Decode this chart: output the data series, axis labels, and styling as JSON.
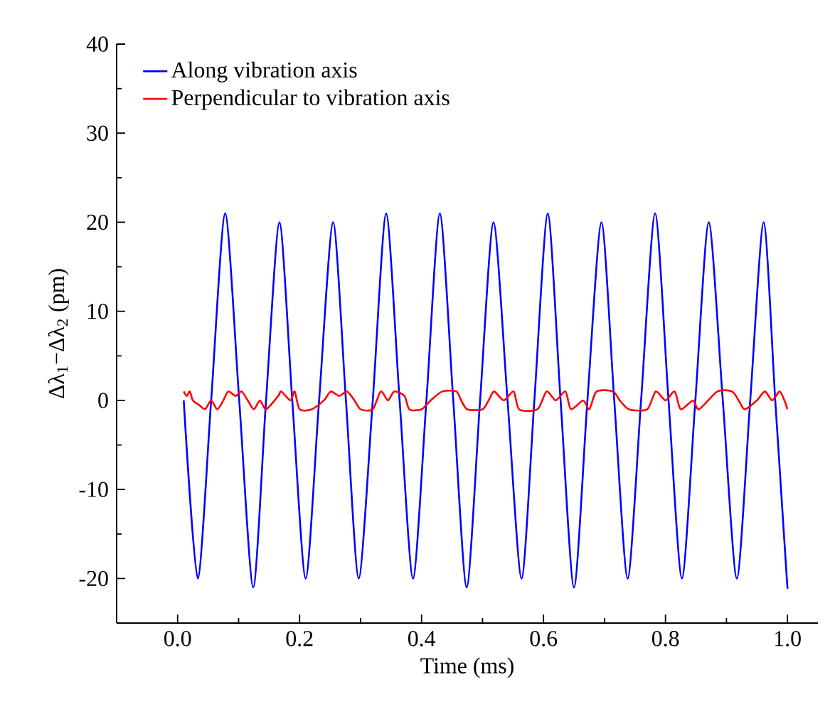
{
  "chart_data": {
    "type": "line",
    "xlabel": "Time (ms)",
    "ylabel": "Δλ$_{1}$−Δλ$_{2}$ (pm)",
    "xlim": [
      -0.1,
      1.05
    ],
    "ylim": [
      -25,
      40
    ],
    "xticks": [
      {
        "value": 0,
        "label": "0.0"
      },
      {
        "value": 0.2,
        "label": "0.2"
      },
      {
        "value": 0.4,
        "label": "0.4"
      },
      {
        "value": 0.6,
        "label": "0.6"
      },
      {
        "value": 0.8,
        "label": "0.8"
      },
      {
        "value": 1,
        "label": "1.0"
      }
    ],
    "yticks": [
      -20,
      -10,
      0,
      10,
      20,
      30,
      40
    ],
    "legend": "top left",
    "marker": "none",
    "line_style": "solid",
    "grid": false,
    "series": [
      {
        "name": "Along vibration axis",
        "color": "#0000ff",
        "x": [
          0.01,
          0.033,
          0.055,
          0.078,
          0.101,
          0.124,
          0.145,
          0.167,
          0.188,
          0.21,
          0.232,
          0.255,
          0.276,
          0.297,
          0.32,
          0.342,
          0.364,
          0.386,
          0.408,
          0.43,
          0.452,
          0.474,
          0.496,
          0.518,
          0.541,
          0.564,
          0.585,
          0.607,
          0.628,
          0.65,
          0.672,
          0.695,
          0.716,
          0.738,
          0.76,
          0.783,
          0.805,
          0.827,
          0.849,
          0.871,
          0.894,
          0.917,
          0.939,
          0.961,
          0.98,
          0.998,
          1.0
        ],
        "values": [
          0,
          -20,
          0,
          21,
          0,
          -21,
          0,
          20,
          0,
          -20,
          0,
          20,
          0,
          -20,
          0,
          21,
          0,
          -20,
          0,
          21,
          0,
          -21,
          0,
          20,
          0,
          -20,
          0,
          21,
          0,
          -21,
          0,
          20,
          0,
          -20,
          0,
          21,
          0,
          -20,
          0,
          20,
          0,
          -20,
          0,
          20,
          0,
          -19,
          -21
        ]
      },
      {
        "name": "Perpendicular to vibration axis",
        "color": "#ff0000",
        "x": [
          0.01,
          0.015,
          0.02,
          0.025,
          0.035,
          0.045,
          0.055,
          0.065,
          0.075,
          0.083,
          0.095,
          0.105,
          0.115,
          0.125,
          0.135,
          0.145,
          0.165,
          0.17,
          0.185,
          0.192,
          0.2,
          0.22,
          0.24,
          0.251,
          0.265,
          0.278,
          0.29,
          0.3,
          0.32,
          0.333,
          0.345,
          0.355,
          0.372,
          0.38,
          0.4,
          0.415,
          0.434,
          0.457,
          0.465,
          0.475,
          0.5,
          0.51,
          0.519,
          0.535,
          0.551,
          0.56,
          0.59,
          0.605,
          0.62,
          0.636,
          0.645,
          0.665,
          0.675,
          0.687,
          0.714,
          0.725,
          0.74,
          0.77,
          0.784,
          0.8,
          0.815,
          0.825,
          0.845,
          0.855,
          0.885,
          0.909,
          0.92,
          0.93,
          0.95,
          0.963,
          0.975,
          0.987,
          0.995,
          1.0
        ],
        "values": [
          1,
          0.5,
          1,
          0,
          -0.5,
          -1,
          0,
          -1,
          0,
          1,
          0.5,
          1,
          0,
          -1,
          0,
          -1,
          0.5,
          1,
          0,
          1,
          -1,
          -1,
          0,
          1,
          0.5,
          1,
          0,
          -1,
          -1,
          1,
          0,
          1,
          0.5,
          -1,
          -1,
          0,
          1,
          1,
          0,
          -1,
          -1,
          0,
          1,
          0,
          1,
          -1,
          -1,
          1,
          0,
          1,
          -1,
          0,
          -1,
          1,
          1,
          0,
          -1,
          -1,
          1,
          0,
          1,
          -1,
          0,
          -1,
          1,
          1,
          0,
          -1,
          0,
          1,
          0,
          1,
          0,
          -1
        ]
      }
    ]
  }
}
